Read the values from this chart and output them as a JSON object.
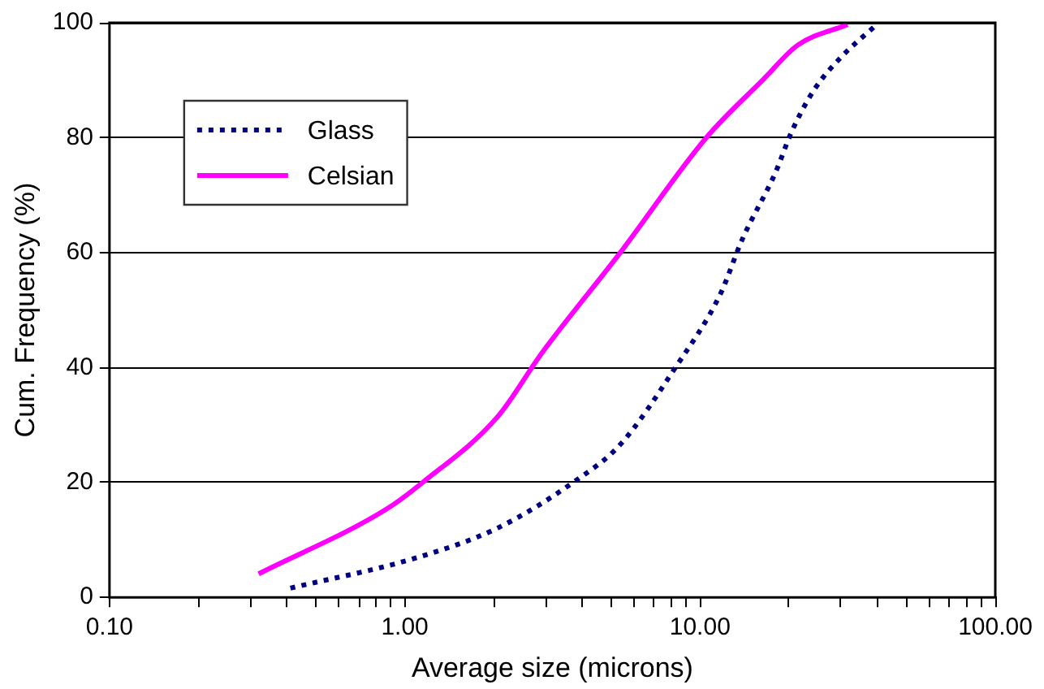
{
  "chart_data": {
    "type": "line",
    "xlabel": "Average size (microns)",
    "ylabel": "Cum. Frequency (%)",
    "log": "x",
    "xlim": [
      0.1,
      100
    ],
    "ylim": [
      0,
      100
    ],
    "xticks": [
      {
        "value": 0.1,
        "label": "0.10"
      },
      {
        "value": 0.2,
        "label": null
      },
      {
        "value": 0.3,
        "label": null
      },
      {
        "value": 0.4,
        "label": null
      },
      {
        "value": 0.5,
        "label": null
      },
      {
        "value": 0.6,
        "label": null
      },
      {
        "value": 0.7,
        "label": null
      },
      {
        "value": 0.8,
        "label": null
      },
      {
        "value": 0.9,
        "label": null
      },
      {
        "value": 1,
        "label": "1.00"
      },
      {
        "value": 2,
        "label": null
      },
      {
        "value": 3,
        "label": null
      },
      {
        "value": 4,
        "label": null
      },
      {
        "value": 5,
        "label": null
      },
      {
        "value": 6,
        "label": null
      },
      {
        "value": 7,
        "label": null
      },
      {
        "value": 8,
        "label": null
      },
      {
        "value": 9,
        "label": null
      },
      {
        "value": 10,
        "label": "10.00"
      },
      {
        "value": 20,
        "label": null
      },
      {
        "value": 30,
        "label": null
      },
      {
        "value": 40,
        "label": null
      },
      {
        "value": 50,
        "label": null
      },
      {
        "value": 60,
        "label": null
      },
      {
        "value": 70,
        "label": null
      },
      {
        "value": 80,
        "label": null
      },
      {
        "value": 90,
        "label": null
      },
      {
        "value": 100,
        "label": "100.00"
      }
    ],
    "yticks": [
      0,
      20,
      40,
      60,
      80,
      100
    ],
    "grid": "y",
    "legend": "top left",
    "marker": "none",
    "series": [
      {
        "name": "Glass",
        "color": "#000080",
        "line_style": "dotted",
        "x": [
          0.41,
          1.08,
          2.07,
          3.79,
          5.37,
          8.28,
          11.7,
          13.9,
          18.0,
          20.5,
          24.4,
          30.3,
          39.3
        ],
        "values": [
          1.6,
          6.8,
          12.1,
          20.3,
          26.6,
          40.1,
          52.7,
          62.3,
          73.9,
          81.2,
          88.4,
          94.2,
          99.5
        ]
      },
      {
        "name": "Celsian",
        "color": "#ff00ff",
        "line_style": "solid",
        "x": [
          0.32,
          0.87,
          1.15,
          2.06,
          2.92,
          5.37,
          10.5,
          16.5,
          21.4,
          31.6
        ],
        "values": [
          4.1,
          15.4,
          20,
          31.4,
          42.6,
          60,
          80,
          90.3,
          96.1,
          99.7
        ]
      }
    ]
  }
}
